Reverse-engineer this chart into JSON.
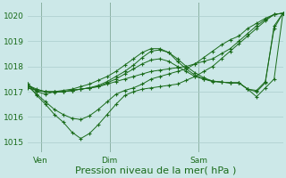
{
  "bg_color": "#cce8e8",
  "grid_color": "#aacccc",
  "line_color": "#1a6b1a",
  "xlabel": "Pression niveau de la mer( hPa )",
  "xlabel_fontsize": 8,
  "yticks": [
    1015,
    1016,
    1017,
    1018,
    1019,
    1020
  ],
  "xtick_labels": [
    "Ven",
    "Dim",
    "Sam"
  ],
  "xtick_positions": [
    0.05,
    0.32,
    0.67
  ],
  "ylim": [
    1014.6,
    1020.5
  ],
  "xlim": [
    0.0,
    1.0
  ],
  "series": [
    [
      1017.3,
      1017.0,
      1016.9,
      1017.0,
      1017.0,
      1017.05,
      1017.1,
      1017.15,
      1017.2,
      1017.3,
      1017.4,
      1017.5,
      1017.6,
      1017.7,
      1017.8,
      1017.85,
      1017.9,
      1017.95,
      1018.0,
      1018.1,
      1018.2,
      1018.3,
      1018.5,
      1018.7,
      1019.0,
      1019.3,
      1019.6,
      1019.85,
      1020.05,
      1020.1
    ],
    [
      1017.3,
      1016.85,
      1016.5,
      1016.1,
      1015.8,
      1015.4,
      1015.15,
      1015.35,
      1015.7,
      1016.1,
      1016.5,
      1016.85,
      1017.0,
      1017.1,
      1017.15,
      1017.2,
      1017.25,
      1017.3,
      1017.45,
      1017.6,
      1017.8,
      1018.0,
      1018.3,
      1018.6,
      1018.9,
      1019.2,
      1019.5,
      1019.8,
      1020.05,
      1020.1
    ],
    [
      1017.2,
      1016.9,
      1016.6,
      1016.3,
      1016.1,
      1015.95,
      1015.9,
      1016.05,
      1016.3,
      1016.6,
      1016.9,
      1017.05,
      1017.15,
      1017.3,
      1017.5,
      1017.6,
      1017.7,
      1017.8,
      1017.9,
      1018.1,
      1018.35,
      1018.6,
      1018.85,
      1019.05,
      1019.2,
      1019.5,
      1019.7,
      1019.9,
      1020.05,
      1020.1
    ],
    [
      1017.25,
      1017.05,
      1017.0,
      1017.0,
      1017.0,
      1017.05,
      1017.1,
      1017.15,
      1017.25,
      1017.4,
      1017.6,
      1017.8,
      1018.05,
      1018.35,
      1018.6,
      1018.65,
      1018.55,
      1018.3,
      1018.0,
      1017.75,
      1017.55,
      1017.42,
      1017.38,
      1017.35,
      1017.35,
      1017.1,
      1017.05,
      1017.4,
      1019.5,
      1020.1
    ],
    [
      1017.15,
      1017.05,
      1017.0,
      1016.98,
      1017.0,
      1017.05,
      1017.1,
      1017.15,
      1017.2,
      1017.35,
      1017.5,
      1017.7,
      1017.9,
      1018.1,
      1018.25,
      1018.3,
      1018.2,
      1018.0,
      1017.8,
      1017.6,
      1017.5,
      1017.4,
      1017.38,
      1017.35,
      1017.35,
      1017.1,
      1016.8,
      1017.15,
      1017.5,
      1020.1
    ],
    [
      1017.25,
      1017.1,
      1017.0,
      1017.0,
      1017.05,
      1017.1,
      1017.2,
      1017.3,
      1017.45,
      1017.6,
      1017.8,
      1018.05,
      1018.3,
      1018.55,
      1018.7,
      1018.7,
      1018.55,
      1018.2,
      1017.9,
      1017.65,
      1017.5,
      1017.42,
      1017.38,
      1017.35,
      1017.35,
      1017.1,
      1017.0,
      1017.35,
      1019.6,
      1020.1
    ]
  ]
}
